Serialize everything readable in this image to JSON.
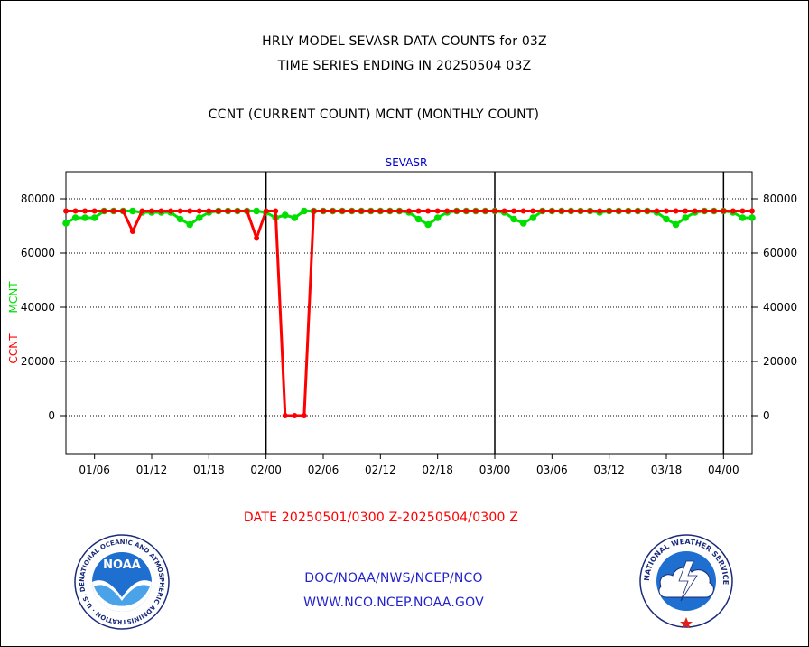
{
  "header": {
    "title_line1": "HRLY MODEL SEVASR DATA COUNTS for 03Z",
    "title_line2": "TIME SERIES ENDING IN 20250504 03Z",
    "subtitle": "CCNT (CURRENT COUNT) MCNT (MONTHLY COUNT)"
  },
  "footer": {
    "date_range": "DATE 20250501/0300 Z-20250504/0300 Z",
    "org": "DOC/NOAA/NWS/NCEP/NCO",
    "url": "WWW.NCO.NCEP.NOAA.GOV"
  },
  "logos": {
    "noaa_text": "NOAA",
    "noaa_ring_text": "NATIONAL OCEANIC AND ATMOSPHERIC ADMINISTRATION · U.S. DEPARTMENT OF COMMERCE",
    "nws_ring_text": "NATIONAL WEATHER SERVICE"
  },
  "chart_data": {
    "type": "line",
    "title": "SEVASR",
    "ylabel_ccnt": "CCNT",
    "ylabel_mcnt": "MCNT",
    "colors": {
      "ccnt": "#ff0000",
      "mcnt": "#00e000",
      "title": "#0000cc",
      "grid": "#000000"
    },
    "ylim": [
      -14000,
      90000
    ],
    "y_ticks": [
      0,
      20000,
      40000,
      60000,
      80000
    ],
    "y_tick_labels": [
      "0",
      "20000",
      "40000",
      "60000",
      "80000"
    ],
    "xlim": [
      0,
      72
    ],
    "x_ticks": [
      3,
      9,
      15,
      21,
      27,
      33,
      39,
      45,
      51,
      57,
      63,
      69
    ],
    "x_tick_labels": [
      "01/06",
      "01/12",
      "01/18",
      "02/00",
      "02/06",
      "02/12",
      "02/18",
      "03/00",
      "03/06",
      "03/12",
      "03/18",
      "04/00"
    ],
    "day_boundaries": [
      21,
      45,
      69
    ],
    "grid": true,
    "series": [
      {
        "name": "CCNT",
        "x": [
          0,
          1,
          2,
          3,
          4,
          5,
          6,
          7,
          8,
          9,
          10,
          11,
          12,
          13,
          14,
          15,
          16,
          17,
          18,
          19,
          20,
          21,
          22,
          23,
          24,
          25,
          26,
          27,
          28,
          29,
          30,
          31,
          32,
          33,
          34,
          35,
          36,
          37,
          38,
          39,
          40,
          41,
          42,
          43,
          44,
          45,
          46,
          47,
          48,
          49,
          50,
          51,
          52,
          53,
          54,
          55,
          56,
          57,
          58,
          59,
          60,
          61,
          62,
          63,
          64,
          65,
          66,
          67,
          68,
          69,
          70,
          71,
          72
        ],
        "values": [
          75500,
          75500,
          75500,
          75500,
          75500,
          75500,
          75500,
          68000,
          75500,
          75500,
          75500,
          75500,
          75500,
          75500,
          75500,
          75500,
          75500,
          75500,
          75500,
          75500,
          65500,
          75500,
          75500,
          0,
          0,
          0,
          75500,
          75500,
          75500,
          75500,
          75500,
          75500,
          75500,
          75500,
          75500,
          75500,
          75500,
          75500,
          75500,
          75500,
          75500,
          75500,
          75500,
          75500,
          75500,
          75500,
          75500,
          75500,
          75500,
          75500,
          75500,
          75500,
          75500,
          75500,
          75500,
          75500,
          75500,
          75500,
          75500,
          75500,
          75500,
          75500,
          75500,
          75500,
          75500,
          75500,
          75500,
          75500,
          75500,
          75500,
          75500,
          75500,
          75500
        ]
      },
      {
        "name": "MCNT",
        "x": [
          0,
          1,
          2,
          3,
          4,
          5,
          6,
          7,
          8,
          9,
          10,
          11,
          12,
          13,
          14,
          15,
          16,
          17,
          18,
          19,
          20,
          21,
          22,
          23,
          24,
          25,
          26,
          27,
          28,
          29,
          30,
          31,
          32,
          33,
          34,
          35,
          36,
          37,
          38,
          39,
          40,
          41,
          42,
          43,
          44,
          45,
          46,
          47,
          48,
          49,
          50,
          51,
          52,
          53,
          54,
          55,
          56,
          57,
          58,
          59,
          60,
          61,
          62,
          63,
          64,
          65,
          66,
          67,
          68,
          69,
          70,
          71,
          72
        ],
        "values": [
          71000,
          73000,
          73000,
          73000,
          75500,
          75500,
          75500,
          75500,
          75000,
          75000,
          75000,
          75000,
          72500,
          70500,
          73000,
          75000,
          75500,
          75500,
          75500,
          75500,
          75500,
          75000,
          73000,
          74000,
          73000,
          75500,
          75500,
          75500,
          75500,
          75500,
          75500,
          75500,
          75500,
          75500,
          75500,
          75500,
          75000,
          72500,
          70500,
          73000,
          75000,
          75500,
          75500,
          75500,
          75500,
          75500,
          75000,
          72500,
          71000,
          73000,
          75500,
          75500,
          75500,
          75500,
          75500,
          75500,
          75000,
          75500,
          75500,
          75500,
          75500,
          75500,
          75000,
          72500,
          70500,
          73000,
          75000,
          75500,
          75500,
          75500,
          75000,
          73000,
          73000
        ]
      }
    ]
  }
}
